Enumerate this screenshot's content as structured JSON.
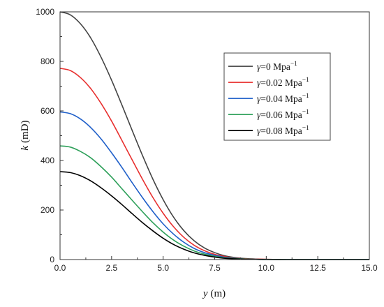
{
  "chart_data": {
    "type": "line",
    "xlabel": {
      "symbol": "y",
      "unit": "(m)"
    },
    "ylabel": {
      "symbol": "k",
      "unit": "(mD)"
    },
    "xlim": [
      0,
      15
    ],
    "ylim": [
      0,
      1000
    ],
    "xticks": [
      0,
      2.5,
      5,
      7.5,
      10,
      12.5,
      15
    ],
    "xtick_labels": [
      "0.0",
      "2.5",
      "5.0",
      "7.5",
      "10.0",
      "12.5",
      "15.0"
    ],
    "yticks": [
      0,
      200,
      400,
      600,
      800,
      1000
    ],
    "ytick_labels": [
      "0",
      "200",
      "400",
      "600",
      "800",
      "1000"
    ],
    "grid": false,
    "legend_position": "top-right",
    "x": [
      0,
      0.5,
      1,
      1.5,
      2,
      2.5,
      3,
      3.5,
      4,
      4.5,
      5,
      5.5,
      6,
      6.5,
      7,
      7.5,
      8,
      8.5,
      9,
      9.5,
      10,
      11,
      12,
      13,
      14,
      15
    ],
    "series": [
      {
        "symbol": "γ",
        "value_text": "=0 Mpa",
        "exponent": "−1",
        "color": "#444444",
        "values": [
          1000,
          988,
          951,
          893,
          815,
          724,
          624,
          521,
          420,
          325,
          242,
          172,
          117,
          76,
          47,
          28,
          15,
          8,
          4,
          2,
          1,
          0,
          0,
          0,
          0,
          0
        ]
      },
      {
        "symbol": "γ",
        "value_text": "=0.02 Mpa",
        "exponent": "−1",
        "color": "#e8302f",
        "values": [
          772,
          763,
          734,
          689,
          629,
          559,
          481,
          402,
          324,
          251,
          187,
          133,
          90,
          58,
          36,
          21,
          12,
          6,
          3,
          2,
          1,
          0,
          0,
          0,
          0,
          0
        ]
      },
      {
        "symbol": "γ",
        "value_text": "=0.04 Mpa",
        "exponent": "−1",
        "color": "#1f5fc9",
        "values": [
          596,
          589,
          567,
          532,
          486,
          431,
          372,
          310,
          250,
          194,
          144,
          103,
          70,
          45,
          28,
          17,
          9,
          5,
          2,
          1,
          0,
          0,
          0,
          0,
          0,
          0
        ]
      },
      {
        "symbol": "γ",
        "value_text": "=0.06 Mpa",
        "exponent": "−1",
        "color": "#2ea05a",
        "values": [
          459,
          454,
          436,
          410,
          374,
          333,
          286,
          239,
          193,
          149,
          111,
          79,
          54,
          35,
          22,
          13,
          7,
          4,
          2,
          1,
          0,
          0,
          0,
          0,
          0,
          0
        ]
      },
      {
        "symbol": "γ",
        "value_text": "=0.08 Mpa",
        "exponent": "−1",
        "color": "#000000",
        "values": [
          355,
          351,
          338,
          317,
          289,
          257,
          222,
          185,
          149,
          116,
          86,
          61,
          42,
          27,
          17,
          10,
          5,
          3,
          1,
          1,
          0,
          0,
          0,
          0,
          0,
          0
        ]
      }
    ]
  }
}
